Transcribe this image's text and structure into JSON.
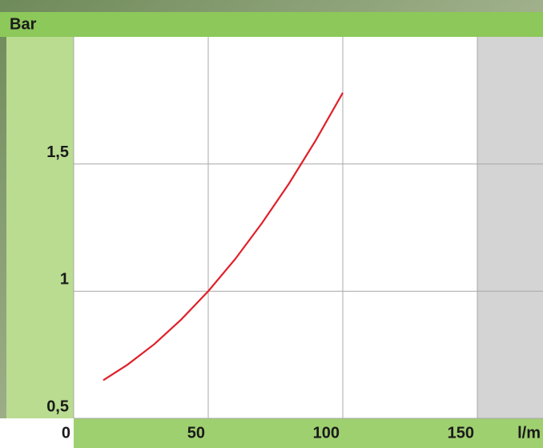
{
  "chart_data": {
    "type": "line",
    "y_label": "Bar",
    "x_label": "l/m",
    "x": [
      11,
      20,
      30,
      40,
      50,
      60,
      70,
      80,
      90,
      100
    ],
    "series": [
      {
        "color": "#e0202a",
        "values": [
          0.65,
          0.711,
          0.792,
          0.889,
          1.0,
          1.126,
          1.268,
          1.423,
          1.594,
          1.78
        ]
      }
    ],
    "xlim": [
      0,
      150
    ],
    "xticks": [
      0,
      50,
      100,
      150
    ],
    "ylim": [
      0.5,
      2.0
    ],
    "yticks": [
      {
        "value": 0.5,
        "label": "0,5"
      },
      1,
      {
        "value": 1.5,
        "label": "1,5"
      }
    ],
    "grid": true
  }
}
